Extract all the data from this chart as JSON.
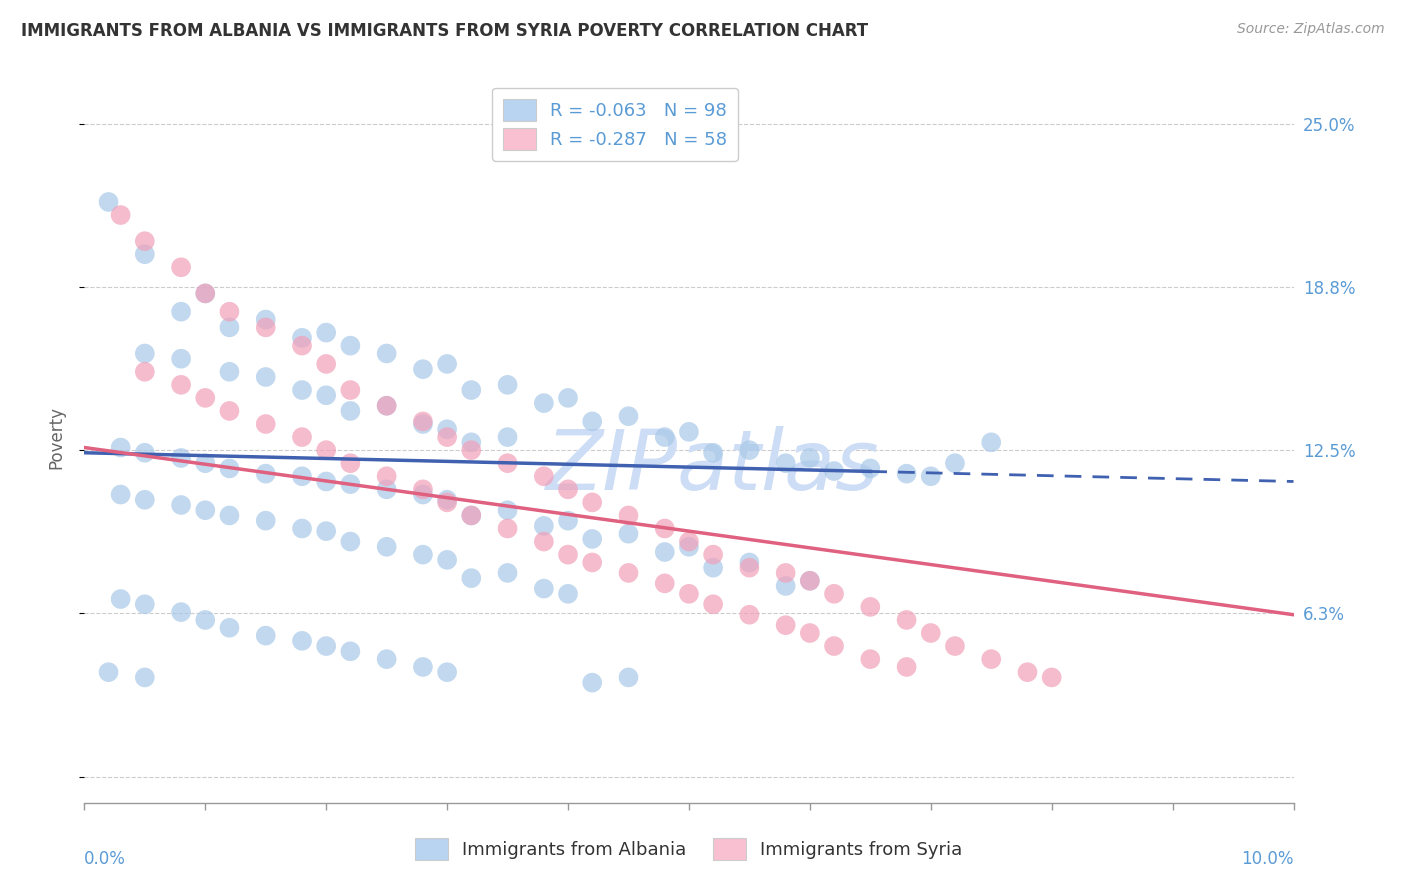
{
  "title": "IMMIGRANTS FROM ALBANIA VS IMMIGRANTS FROM SYRIA POVERTY CORRELATION CHART",
  "source": "Source: ZipAtlas.com",
  "ylabel": "Poverty",
  "yticks": [
    0.0,
    0.0625,
    0.125,
    0.1875,
    0.25
  ],
  "ytick_labels": [
    "",
    "6.3%",
    "12.5%",
    "18.8%",
    "25.0%"
  ],
  "xlim": [
    0.0,
    0.1
  ],
  "ylim": [
    -0.01,
    0.27
  ],
  "albania_color": "#a8c8e8",
  "syria_color": "#f0a0b8",
  "albania_line_color": "#4060b0",
  "albania_dash_color": "#4060b0",
  "syria_line_color": "#e06080",
  "watermark": "ZIPatlas",
  "watermark_color": "#ccddf5",
  "title_fontsize": 12,
  "source_fontsize": 10,
  "axis_label_color": "#5b9bd5",
  "tick_label_color": "#5b9bd5",
  "background_color": "#ffffff",
  "grid_color": "#cccccc",
  "legend_albania_color": "#b8d4f0",
  "legend_syria_color": "#f8c0d0",
  "albania_line_solid_end": 0.065,
  "albania_trendline_y0": 0.124,
  "albania_trendline_y1_at10": 0.113,
  "syria_trendline_y0": 0.126,
  "syria_trendline_y1_at10": 0.062,
  "albania_scatter": [
    [
      0.002,
      0.22
    ],
    [
      0.005,
      0.2
    ],
    [
      0.01,
      0.185
    ],
    [
      0.008,
      0.178
    ],
    [
      0.015,
      0.175
    ],
    [
      0.012,
      0.172
    ],
    [
      0.02,
      0.17
    ],
    [
      0.018,
      0.168
    ],
    [
      0.022,
      0.165
    ],
    [
      0.025,
      0.162
    ],
    [
      0.005,
      0.162
    ],
    [
      0.008,
      0.16
    ],
    [
      0.03,
      0.158
    ],
    [
      0.028,
      0.156
    ],
    [
      0.012,
      0.155
    ],
    [
      0.015,
      0.153
    ],
    [
      0.035,
      0.15
    ],
    [
      0.032,
      0.148
    ],
    [
      0.018,
      0.148
    ],
    [
      0.02,
      0.146
    ],
    [
      0.04,
      0.145
    ],
    [
      0.038,
      0.143
    ],
    [
      0.025,
      0.142
    ],
    [
      0.022,
      0.14
    ],
    [
      0.045,
      0.138
    ],
    [
      0.042,
      0.136
    ],
    [
      0.028,
      0.135
    ],
    [
      0.03,
      0.133
    ],
    [
      0.05,
      0.132
    ],
    [
      0.048,
      0.13
    ],
    [
      0.035,
      0.13
    ],
    [
      0.032,
      0.128
    ],
    [
      0.003,
      0.126
    ],
    [
      0.005,
      0.124
    ],
    [
      0.055,
      0.125
    ],
    [
      0.052,
      0.124
    ],
    [
      0.008,
      0.122
    ],
    [
      0.01,
      0.12
    ],
    [
      0.06,
      0.122
    ],
    [
      0.058,
      0.12
    ],
    [
      0.012,
      0.118
    ],
    [
      0.015,
      0.116
    ],
    [
      0.065,
      0.118
    ],
    [
      0.062,
      0.117
    ],
    [
      0.018,
      0.115
    ],
    [
      0.02,
      0.113
    ],
    [
      0.07,
      0.115
    ],
    [
      0.068,
      0.116
    ],
    [
      0.022,
      0.112
    ],
    [
      0.025,
      0.11
    ],
    [
      0.075,
      0.128
    ],
    [
      0.072,
      0.12
    ],
    [
      0.028,
      0.108
    ],
    [
      0.03,
      0.106
    ],
    [
      0.003,
      0.108
    ],
    [
      0.005,
      0.106
    ],
    [
      0.008,
      0.104
    ],
    [
      0.01,
      0.102
    ],
    [
      0.035,
      0.102
    ],
    [
      0.032,
      0.1
    ],
    [
      0.012,
      0.1
    ],
    [
      0.015,
      0.098
    ],
    [
      0.04,
      0.098
    ],
    [
      0.038,
      0.096
    ],
    [
      0.018,
      0.095
    ],
    [
      0.02,
      0.094
    ],
    [
      0.045,
      0.093
    ],
    [
      0.042,
      0.091
    ],
    [
      0.022,
      0.09
    ],
    [
      0.025,
      0.088
    ],
    [
      0.05,
      0.088
    ],
    [
      0.048,
      0.086
    ],
    [
      0.028,
      0.085
    ],
    [
      0.03,
      0.083
    ],
    [
      0.055,
      0.082
    ],
    [
      0.052,
      0.08
    ],
    [
      0.035,
      0.078
    ],
    [
      0.032,
      0.076
    ],
    [
      0.06,
      0.075
    ],
    [
      0.058,
      0.073
    ],
    [
      0.038,
      0.072
    ],
    [
      0.04,
      0.07
    ],
    [
      0.003,
      0.068
    ],
    [
      0.005,
      0.066
    ],
    [
      0.008,
      0.063
    ],
    [
      0.01,
      0.06
    ],
    [
      0.012,
      0.057
    ],
    [
      0.015,
      0.054
    ],
    [
      0.018,
      0.052
    ],
    [
      0.02,
      0.05
    ],
    [
      0.022,
      0.048
    ],
    [
      0.025,
      0.045
    ],
    [
      0.028,
      0.042
    ],
    [
      0.03,
      0.04
    ],
    [
      0.002,
      0.04
    ],
    [
      0.005,
      0.038
    ],
    [
      0.045,
      0.038
    ],
    [
      0.042,
      0.036
    ]
  ],
  "syria_scatter": [
    [
      0.003,
      0.215
    ],
    [
      0.005,
      0.205
    ],
    [
      0.008,
      0.195
    ],
    [
      0.01,
      0.185
    ],
    [
      0.012,
      0.178
    ],
    [
      0.015,
      0.172
    ],
    [
      0.018,
      0.165
    ],
    [
      0.02,
      0.158
    ],
    [
      0.005,
      0.155
    ],
    [
      0.008,
      0.15
    ],
    [
      0.022,
      0.148
    ],
    [
      0.025,
      0.142
    ],
    [
      0.01,
      0.145
    ],
    [
      0.012,
      0.14
    ],
    [
      0.028,
      0.136
    ],
    [
      0.03,
      0.13
    ],
    [
      0.015,
      0.135
    ],
    [
      0.018,
      0.13
    ],
    [
      0.032,
      0.125
    ],
    [
      0.035,
      0.12
    ],
    [
      0.02,
      0.125
    ],
    [
      0.022,
      0.12
    ],
    [
      0.038,
      0.115
    ],
    [
      0.04,
      0.11
    ],
    [
      0.025,
      0.115
    ],
    [
      0.028,
      0.11
    ],
    [
      0.042,
      0.105
    ],
    [
      0.045,
      0.1
    ],
    [
      0.03,
      0.105
    ],
    [
      0.032,
      0.1
    ],
    [
      0.048,
      0.095
    ],
    [
      0.05,
      0.09
    ],
    [
      0.035,
      0.095
    ],
    [
      0.038,
      0.09
    ],
    [
      0.052,
      0.085
    ],
    [
      0.055,
      0.08
    ],
    [
      0.04,
      0.085
    ],
    [
      0.042,
      0.082
    ],
    [
      0.058,
      0.078
    ],
    [
      0.06,
      0.075
    ],
    [
      0.045,
      0.078
    ],
    [
      0.048,
      0.074
    ],
    [
      0.062,
      0.07
    ],
    [
      0.065,
      0.065
    ],
    [
      0.05,
      0.07
    ],
    [
      0.052,
      0.066
    ],
    [
      0.068,
      0.06
    ],
    [
      0.07,
      0.055
    ],
    [
      0.055,
      0.062
    ],
    [
      0.058,
      0.058
    ],
    [
      0.072,
      0.05
    ],
    [
      0.075,
      0.045
    ],
    [
      0.06,
      0.055
    ],
    [
      0.062,
      0.05
    ],
    [
      0.078,
      0.04
    ],
    [
      0.08,
      0.038
    ],
    [
      0.065,
      0.045
    ],
    [
      0.068,
      0.042
    ]
  ]
}
